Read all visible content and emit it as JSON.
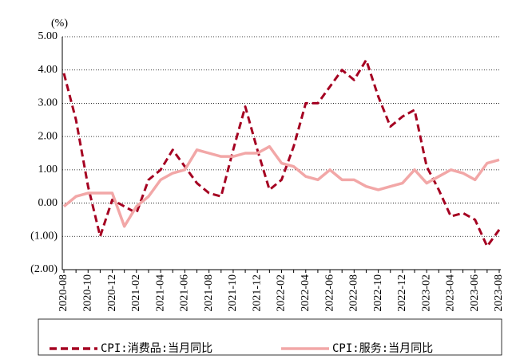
{
  "chart_data": {
    "type": "line",
    "unit_label": "(%)",
    "categories": [
      "2020-08",
      null,
      "2020-10",
      null,
      "2020-12",
      null,
      "2021-02",
      null,
      "2021-04",
      null,
      "2021-06",
      null,
      "2021-08",
      null,
      "2021-10",
      null,
      "2021-12",
      null,
      "2022-02",
      null,
      "2022-04",
      null,
      "2022-06",
      null,
      "2022-08",
      null,
      "2022-10",
      null,
      "2022-12",
      null,
      "2023-02",
      null,
      "2023-04",
      null,
      "2023-06",
      null,
      "2023-08"
    ],
    "series": [
      {
        "name": "CPI:消费品:当月同比",
        "color": "#a50021",
        "dashed": true,
        "values": [
          3.9,
          2.5,
          0.5,
          -1.0,
          0.1,
          -0.1,
          -0.3,
          0.7,
          1.0,
          1.6,
          1.1,
          0.6,
          0.3,
          0.2,
          1.6,
          2.9,
          1.6,
          0.4,
          0.7,
          1.7,
          3.0,
          3.0,
          3.5,
          4.0,
          3.7,
          4.3,
          3.2,
          2.3,
          2.6,
          2.8,
          1.1,
          0.4,
          -0.4,
          -0.3,
          -0.5,
          -1.3,
          -0.8
        ]
      },
      {
        "name": "CPI:服务:当月同比",
        "color": "#f2a7a7",
        "dashed": false,
        "values": [
          -0.1,
          0.2,
          0.3,
          0.3,
          0.3,
          -0.7,
          -0.1,
          0.2,
          0.7,
          0.9,
          1.0,
          1.6,
          1.5,
          1.4,
          1.4,
          1.5,
          1.5,
          1.7,
          1.2,
          1.1,
          0.8,
          0.7,
          1.0,
          0.7,
          0.7,
          0.5,
          0.4,
          0.5,
          0.6,
          1.0,
          0.6,
          0.8,
          1.0,
          0.9,
          0.7,
          1.2,
          1.3
        ]
      }
    ],
    "ylim": [
      -2,
      5
    ],
    "yticks": [
      {
        "value": 5,
        "label": "5.00"
      },
      {
        "value": 4,
        "label": "4.00"
      },
      {
        "value": 3,
        "label": "3.00"
      },
      {
        "value": 2,
        "label": "2.00"
      },
      {
        "value": 1,
        "label": "1.00"
      },
      {
        "value": 0,
        "label": "0.00"
      },
      {
        "value": -1,
        "label": "(1.00)"
      },
      {
        "value": -2,
        "label": "(2.00)"
      }
    ],
    "grid": true,
    "legend": "bottom"
  }
}
